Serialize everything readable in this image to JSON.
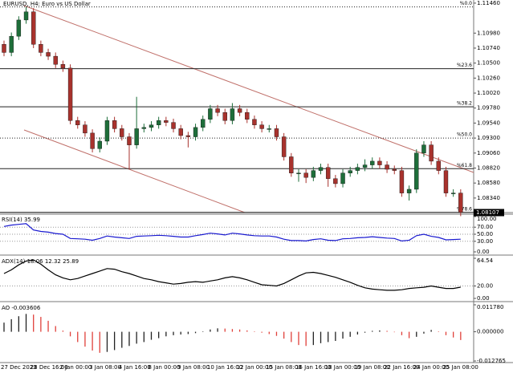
{
  "chart_data": [
    {
      "type": "candlestick",
      "title": "EURUSD, H4:  Euro vs US Dollar",
      "categories": [
        "27 Dec 2023",
        null,
        null,
        null,
        "28 Dec 16:00",
        null,
        null,
        null,
        "2 Jan 00:00",
        null,
        null,
        null,
        "3 Jan 08:00",
        null,
        null,
        null,
        "4 Jan 16:00",
        null,
        null,
        null,
        "8 Jan 00:00",
        null,
        null,
        null,
        "9 Jan 08:00",
        null,
        null,
        null,
        "10 Jan 16:00",
        null,
        null,
        null,
        "12 Jan 00:00",
        null,
        null,
        null,
        "15 Jan 08:00",
        null,
        null,
        null,
        "16 Jan 16:00",
        null,
        null,
        null,
        "18 Jan 00:00",
        null,
        null,
        null,
        "19 Jan 08:00",
        null,
        null,
        null,
        "22 Jan 16:00",
        null,
        null,
        null,
        "24 Jan 00:00",
        null,
        null,
        null,
        "25 Jan 08:00",
        null,
        null
      ],
      "open": [
        1.108,
        1.1067,
        1.1093,
        1.1119,
        1.1132,
        1.108,
        1.1067,
        1.1061,
        1.1048,
        1.1042,
        1.0958,
        1.0951,
        1.0938,
        1.0913,
        1.0925,
        1.0958,
        1.0945,
        1.0932,
        1.0919,
        1.0945,
        1.0947,
        1.0951,
        1.0958,
        1.0955,
        1.0945,
        1.0934,
        1.0932,
        1.0947,
        1.096,
        1.0977,
        1.0971,
        1.0958,
        1.0977,
        1.0971,
        1.096,
        1.0951,
        1.0945,
        1.0945,
        1.0932,
        1.09,
        1.0874,
        1.0874,
        1.0867,
        1.0878,
        1.0883,
        1.0865,
        1.0857,
        1.0874,
        1.0878,
        1.0883,
        1.0887,
        1.0893,
        1.0887,
        1.088,
        1.0878,
        1.0842,
        1.0848,
        1.0906,
        1.0919,
        1.0893,
        1.0878,
        1.0842,
        1.0842
      ],
      "high": [
        1.1086,
        1.1099,
        1.1125,
        1.114,
        1.1138,
        1.1086,
        1.1073,
        1.1067,
        1.1054,
        1.1048,
        1.0964,
        1.0957,
        1.0944,
        1.0931,
        1.0964,
        1.0964,
        1.0951,
        1.0938,
        1.0996,
        1.0953,
        1.0957,
        1.0964,
        1.0964,
        1.0961,
        1.0951,
        1.094,
        1.0953,
        1.0966,
        1.0983,
        1.0983,
        1.0977,
        1.0986,
        1.0983,
        1.0977,
        1.0966,
        1.0957,
        1.0951,
        1.0951,
        1.0938,
        1.0906,
        1.088,
        1.088,
        1.0884,
        1.0889,
        1.0889,
        1.0871,
        1.088,
        1.0884,
        1.0889,
        1.0896,
        1.0899,
        1.0899,
        1.0893,
        1.0886,
        1.0884,
        1.0854,
        1.0912,
        1.0925,
        1.0925,
        1.0899,
        1.0884,
        1.0848,
        1.0848
      ],
      "low": [
        1.1061,
        1.1061,
        1.1087,
        1.1113,
        1.1074,
        1.1061,
        1.1055,
        1.1042,
        1.1036,
        1.0952,
        1.0945,
        1.0932,
        1.0907,
        1.0907,
        1.0919,
        1.0939,
        1.0926,
        1.088,
        1.0913,
        1.0939,
        1.0941,
        1.0945,
        1.0949,
        1.0939,
        1.0928,
        1.0915,
        1.0926,
        1.0941,
        1.0954,
        1.0965,
        1.0952,
        1.0952,
        1.0965,
        1.0954,
        1.0945,
        1.0939,
        1.0939,
        1.0926,
        1.0894,
        1.0868,
        1.086,
        1.0858,
        1.0861,
        1.0872,
        1.0852,
        1.0851,
        1.0851,
        1.0868,
        1.0872,
        1.0877,
        1.0881,
        1.0881,
        1.0874,
        1.0872,
        1.0836,
        1.083,
        1.0842,
        1.09,
        1.0887,
        1.0872,
        1.0836,
        1.0836,
        1.0805
      ],
      "close": [
        1.1067,
        1.1093,
        1.1119,
        1.1132,
        1.108,
        1.1067,
        1.1061,
        1.1048,
        1.1042,
        1.0958,
        1.0951,
        1.0938,
        1.0913,
        1.0925,
        1.0958,
        1.0945,
        1.0932,
        1.0919,
        1.0945,
        1.0947,
        1.0951,
        1.0958,
        1.0955,
        1.0945,
        1.0934,
        1.0932,
        1.0947,
        1.096,
        1.0977,
        1.0971,
        1.0958,
        1.0977,
        1.0971,
        1.096,
        1.0951,
        1.0945,
        1.0945,
        1.0932,
        1.09,
        1.0874,
        1.0874,
        1.0867,
        1.0878,
        1.0883,
        1.0865,
        1.0857,
        1.0874,
        1.0878,
        1.0883,
        1.0887,
        1.0893,
        1.0887,
        1.088,
        1.0878,
        1.0842,
        1.0848,
        1.0906,
        1.0919,
        1.0893,
        1.0878,
        1.0842,
        1.0842,
        1.0811
      ],
      "up_color": "#1e6e3a",
      "down_color": "#a8322d",
      "ylim": [
        1.0812,
        1.1151
      ],
      "yticks": [
        {
          "value": 1.1146,
          "label": "1.11460"
        },
        {
          "value": 1.1098,
          "label": "1.10980"
        },
        {
          "value": 1.1074,
          "label": "1.10740"
        },
        {
          "value": 1.105,
          "label": "1.10500"
        },
        {
          "value": 1.1026,
          "label": "1.10260"
        },
        {
          "value": 1.1002,
          "label": "1.10020"
        },
        {
          "value": 1.0978,
          "label": "1.09780"
        },
        {
          "value": 1.0954,
          "label": "1.09540"
        },
        {
          "value": 1.093,
          "label": "1.09300"
        },
        {
          "value": 1.0906,
          "label": "1.09060"
        },
        {
          "value": 1.0882,
          "label": "1.08820"
        },
        {
          "value": 1.0858,
          "label": "1.08580"
        },
        {
          "value": 1.0834,
          "label": "1.08340"
        }
      ],
      "levels": [
        {
          "value": 1.114,
          "label": "%0.0",
          "style": "dotted"
        },
        {
          "value": 1.1041,
          "label": "%23.6",
          "style": "solid"
        },
        {
          "value": 1.098,
          "label": "%38.2",
          "style": "solid"
        },
        {
          "value": 1.093,
          "label": "%50.0",
          "style": "dotted"
        },
        {
          "value": 1.0881,
          "label": "%61.8",
          "style": "solid"
        },
        {
          "value": 1.0811,
          "label": "%78.6",
          "style": "solid"
        }
      ],
      "last_price": {
        "value": 1.08107,
        "label": "1.08107"
      }
    },
    {
      "type": "line",
      "title": "RSI(14) 35.99",
      "color": "#1a1ad0",
      "values": [
        72,
        76,
        78,
        80,
        62,
        58,
        56,
        52,
        50,
        38,
        37,
        36,
        33,
        38,
        45,
        42,
        40,
        38,
        44,
        45,
        46,
        47,
        46,
        44,
        42,
        42,
        46,
        49,
        53,
        51,
        48,
        53,
        51,
        48,
        46,
        45,
        45,
        42,
        36,
        32,
        32,
        31,
        35,
        37,
        33,
        32,
        37,
        38,
        40,
        41,
        43,
        41,
        39,
        38,
        31,
        33,
        46,
        50,
        44,
        41,
        34,
        35,
        35.99
      ],
      "ylim": [
        0,
        100
      ],
      "yticks": [
        {
          "value": 100,
          "label": "100.00"
        },
        {
          "value": 70,
          "label": "70.00"
        },
        {
          "value": 50,
          "label": "50.00"
        },
        {
          "value": 30,
          "label": "30.00"
        },
        {
          "value": 0,
          "label": "0.00"
        }
      ],
      "grid": "dotted"
    },
    {
      "type": "line",
      "title": "ADX(14) 18.06 12.32 25.89",
      "color": "#000000",
      "values": [
        40,
        46,
        54,
        60,
        62,
        55,
        46,
        38,
        33,
        30,
        32,
        36,
        40,
        44,
        48,
        47,
        43,
        40,
        36,
        32,
        30,
        27,
        25,
        23,
        24,
        26,
        27,
        26,
        28,
        30,
        33,
        35,
        33,
        30,
        26,
        22,
        21,
        20,
        24,
        30,
        36,
        41,
        42,
        40,
        37,
        34,
        30,
        26,
        21,
        17,
        15,
        14,
        13,
        13,
        14,
        16,
        17,
        18,
        20,
        18,
        16,
        16,
        18.06
      ],
      "ylim": [
        0,
        64.54
      ],
      "yticks": [
        {
          "value": 64.54,
          "label": "64.54"
        },
        {
          "value": 20,
          "label": "20.00"
        },
        {
          "value": 0,
          "label": "0.00"
        }
      ],
      "grid": "dotted"
    },
    {
      "type": "bar",
      "title": "AO -0.003606",
      "up_color": "#222222",
      "down_color": "#e0403a",
      "values": [
        0.004,
        0.0055,
        0.0068,
        0.0078,
        0.0075,
        0.0065,
        0.0048,
        0.0025,
        0.0005,
        -0.002,
        -0.0045,
        -0.0065,
        -0.0082,
        -0.0092,
        -0.0088,
        -0.008,
        -0.007,
        -0.0062,
        -0.0052,
        -0.0045,
        -0.0035,
        -0.0028,
        -0.002,
        -0.0015,
        -0.0012,
        -0.001,
        -0.0006,
        0.0002,
        0.001,
        0.0015,
        0.0014,
        0.0012,
        0.001,
        0.0006,
        0.0002,
        -0.0004,
        -0.001,
        -0.0018,
        -0.003,
        -0.0045,
        -0.0058,
        -0.0062,
        -0.0058,
        -0.005,
        -0.0045,
        -0.004,
        -0.003,
        -0.0022,
        -0.0012,
        -0.0004,
        0.0004,
        0.0006,
        0.0004,
        -0.0002,
        -0.0015,
        -0.0028,
        -0.0022,
        -0.0008,
        0.0008,
        0.0002,
        -0.0015,
        -0.0025,
        -0.003606
      ],
      "ylim": [
        -0.012765,
        0.01178
      ],
      "yticks": [
        {
          "value": 0.01178,
          "label": "0.011780"
        },
        {
          "value": 0,
          "label": "0.000000"
        },
        {
          "value": -0.012765,
          "label": "-0.012765"
        }
      ]
    }
  ]
}
